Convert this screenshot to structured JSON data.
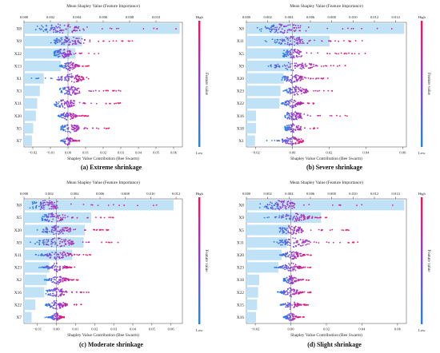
{
  "figure": {
    "top_axis_label": "Mean Shapley Value (Feature Importance)",
    "bottom_axis_label": "Shapley Value Contribution (Bee Swarm)",
    "colorbar": {
      "title": "Feature value",
      "high": "High",
      "low": "Low"
    },
    "colors": {
      "bar": "#bfe2f7",
      "low": "#1e88e5",
      "high": "#ff0d57",
      "zero_line": "#888888"
    }
  },
  "chart_data": [
    {
      "type": "bar",
      "panel": "a",
      "caption": "(a) Extreme shrinkage",
      "features": [
        "X8",
        "X9",
        "X22",
        "X13",
        "X1",
        "X3",
        "X11",
        "X20",
        "X5",
        "X7"
      ],
      "importance": [
        0.0118,
        0.0044,
        0.0039,
        0.0028,
        0.0015,
        0.0012,
        0.001,
        0.0009,
        0.0007,
        0.0006
      ],
      "top_ticks": [
        "0.000",
        "0.002",
        "0.004",
        "0.006",
        "0.008",
        "0.010"
      ],
      "top_range": [
        0,
        0.012
      ],
      "bottom_ticks": [
        "−0.02",
        "−0.01",
        "0.00",
        "0.01",
        "0.02",
        "0.03",
        "0.04",
        "0.05",
        "0.06"
      ],
      "bottom_range": [
        -0.025,
        0.065
      ],
      "swarm": [
        {
          "feature": "X8",
          "min": -0.022,
          "max": 0.062,
          "peak": -0.004
        },
        {
          "feature": "X9",
          "min": -0.01,
          "max": 0.042,
          "peak": 0.0
        },
        {
          "feature": "X22",
          "min": -0.008,
          "max": 0.02,
          "peak": -0.003
        },
        {
          "feature": "X13",
          "min": -0.005,
          "max": 0.012,
          "peak": 0.001
        },
        {
          "feature": "X1",
          "min": -0.022,
          "max": 0.012,
          "peak": 0.002
        },
        {
          "feature": "X3",
          "min": -0.005,
          "max": 0.03,
          "peak": 0.001
        },
        {
          "feature": "X11",
          "min": -0.008,
          "max": 0.032,
          "peak": -0.002
        },
        {
          "feature": "X20",
          "min": -0.006,
          "max": 0.012,
          "peak": 0.0
        },
        {
          "feature": "X5",
          "min": -0.004,
          "max": 0.026,
          "peak": 0.001
        },
        {
          "feature": "X7",
          "min": -0.004,
          "max": 0.008,
          "peak": 0.0
        }
      ]
    },
    {
      "type": "bar",
      "panel": "b",
      "caption": "(b) Severe shrinkage",
      "features": [
        "X8",
        "X11",
        "X5",
        "X9",
        "X20",
        "X23",
        "X22",
        "X16",
        "X18",
        "X1"
      ],
      "importance": [
        0.0148,
        0.0078,
        0.0044,
        0.0042,
        0.0035,
        0.0032,
        0.0031,
        0.0009,
        0.0009,
        0.0008
      ],
      "top_ticks": [
        "0.000",
        "0.002",
        "0.004",
        "0.006",
        "0.008",
        "0.010",
        "0.012",
        "0.014"
      ],
      "top_range": [
        0,
        0.015
      ],
      "bottom_ticks": [
        "−0.02",
        "0.00",
        "0.02",
        "0.04",
        "0.06"
      ],
      "bottom_range": [
        -0.025,
        0.062
      ],
      "swarm": [
        {
          "feature": "X8",
          "min": -0.02,
          "max": 0.06,
          "peak": -0.005
        },
        {
          "feature": "X11",
          "min": -0.015,
          "max": 0.038,
          "peak": 0.0
        },
        {
          "feature": "X5",
          "min": -0.005,
          "max": 0.042,
          "peak": 0.0
        },
        {
          "feature": "X9",
          "min": -0.016,
          "max": 0.034,
          "peak": 0.001
        },
        {
          "feature": "X20",
          "min": -0.006,
          "max": 0.02,
          "peak": 0.0
        },
        {
          "feature": "X23",
          "min": -0.005,
          "max": 0.022,
          "peak": 0.002
        },
        {
          "feature": "X22",
          "min": -0.006,
          "max": 0.012,
          "peak": 0.0
        },
        {
          "feature": "X16",
          "min": -0.004,
          "max": 0.03,
          "peak": 0.0
        },
        {
          "feature": "X18",
          "min": -0.004,
          "max": 0.018,
          "peak": 0.0
        },
        {
          "feature": "X1",
          "min": -0.018,
          "max": 0.006,
          "peak": 0.0
        }
      ]
    },
    {
      "type": "bar",
      "panel": "c",
      "caption": "(c) Moderate shrinkage",
      "features": [
        "X8",
        "X5",
        "X20",
        "X9",
        "X11",
        "X23",
        "X2",
        "X16",
        "X22",
        "X7"
      ],
      "importance": [
        0.0118,
        0.0053,
        0.0048,
        0.0047,
        0.0038,
        0.002,
        0.0018,
        0.0016,
        0.0009,
        0.0006
      ],
      "top_ticks": [
        "0.000",
        "0.002",
        "0.004",
        "0.006",
        "0.008",
        "0.010",
        "0.012"
      ],
      "top_range": [
        0,
        0.0125
      ],
      "bottom_ticks": [
        "−0.01",
        "0.00",
        "0.01",
        "0.02",
        "0.03",
        "0.04",
        "0.05",
        "0.06"
      ],
      "bottom_range": [
        -0.017,
        0.066
      ],
      "swarm": [
        {
          "feature": "X8",
          "min": -0.014,
          "max": 0.062,
          "peak": -0.006
        },
        {
          "feature": "X5",
          "min": -0.008,
          "max": 0.03,
          "peak": -0.002
        },
        {
          "feature": "X20",
          "min": -0.01,
          "max": 0.028,
          "peak": 0.0
        },
        {
          "feature": "X9",
          "min": -0.014,
          "max": 0.034,
          "peak": 0.0
        },
        {
          "feature": "X11",
          "min": -0.012,
          "max": 0.018,
          "peak": 0.0
        },
        {
          "feature": "X23",
          "min": -0.01,
          "max": 0.01,
          "peak": 0.0
        },
        {
          "feature": "X2",
          "min": -0.007,
          "max": 0.012,
          "peak": 0.001
        },
        {
          "feature": "X16",
          "min": -0.006,
          "max": 0.022,
          "peak": 0.0
        },
        {
          "feature": "X22",
          "min": -0.006,
          "max": 0.014,
          "peak": 0.0
        },
        {
          "feature": "X7",
          "min": -0.006,
          "max": 0.004,
          "peak": 0.0
        }
      ]
    },
    {
      "type": "bar",
      "panel": "d",
      "caption": "(d) Slight shrinkage",
      "features": [
        "X8",
        "X9",
        "X5",
        "X11",
        "X20",
        "X23",
        "X18",
        "X22",
        "X15",
        "X16"
      ],
      "importance": [
        0.0148,
        0.007,
        0.004,
        0.0038,
        0.0033,
        0.003,
        0.0012,
        0.0011,
        0.001,
        0.0009
      ],
      "top_ticks": [
        "0.000",
        "0.002",
        "0.004",
        "0.006",
        "0.008",
        "0.010",
        "0.012",
        "0.014"
      ],
      "top_range": [
        0,
        0.015
      ],
      "bottom_ticks": [
        "−0.02",
        "0.00",
        "0.02",
        "0.04",
        "0.06"
      ],
      "bottom_range": [
        -0.025,
        0.065
      ],
      "swarm": [
        {
          "feature": "X8",
          "min": -0.018,
          "max": 0.062,
          "peak": -0.006
        },
        {
          "feature": "X9",
          "min": -0.016,
          "max": 0.022,
          "peak": 0.002
        },
        {
          "feature": "X5",
          "min": -0.008,
          "max": 0.035,
          "peak": 0.0
        },
        {
          "feature": "X11",
          "min": -0.01,
          "max": 0.038,
          "peak": 0.002
        },
        {
          "feature": "X20",
          "min": -0.008,
          "max": 0.012,
          "peak": 0.001
        },
        {
          "feature": "X23",
          "min": -0.01,
          "max": 0.012,
          "peak": 0.0
        },
        {
          "feature": "X18",
          "min": -0.004,
          "max": 0.012,
          "peak": 0.0
        },
        {
          "feature": "X22",
          "min": -0.008,
          "max": 0.012,
          "peak": 0.0
        },
        {
          "feature": "X15",
          "min": -0.006,
          "max": 0.01,
          "peak": 0.0
        },
        {
          "feature": "X16",
          "min": -0.004,
          "max": 0.008,
          "peak": 0.0
        }
      ]
    }
  ]
}
